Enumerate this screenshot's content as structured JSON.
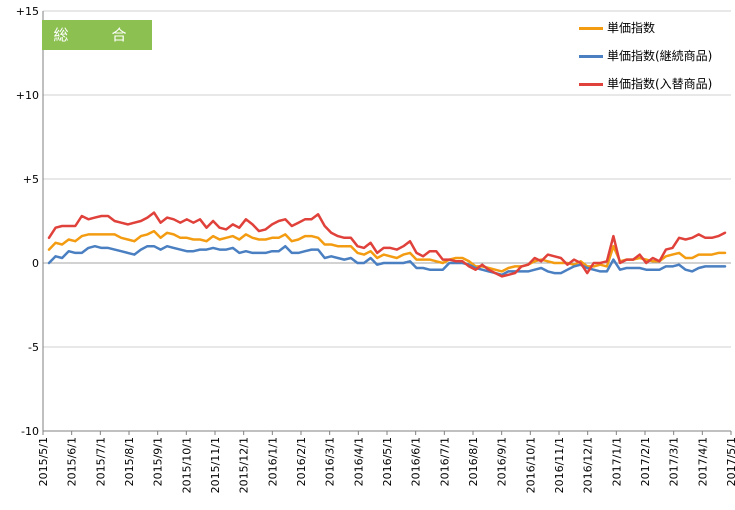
{
  "badge": {
    "label": "総　合",
    "color": "#8cc152"
  },
  "chart_data": {
    "type": "line",
    "title": "総　合",
    "ylim": [
      -10,
      15
    ],
    "yticks": [
      15,
      10,
      5,
      0,
      -5,
      -10
    ],
    "ytick_labels": [
      "+15",
      "+10",
      "+5",
      "0",
      "-5",
      "-10"
    ],
    "grid": true,
    "legend_position": "top-right",
    "x_labels": [
      "2015/5/1",
      "2015/6/1",
      "2015/7/1",
      "2015/8/1",
      "2015/9/1",
      "2015/10/1",
      "2015/11/1",
      "2015/12/1",
      "2016/1/1",
      "2016/2/1",
      "2016/3/1",
      "2016/4/1",
      "2016/5/1",
      "2016/6/1",
      "2016/7/1",
      "2016/8/1",
      "2016/9/1",
      "2016/10/1",
      "2016/11/1",
      "2016/12/1",
      "2017/1/1",
      "2017/2/1",
      "2017/3/1",
      "2017/4/1",
      "2017/5/1"
    ],
    "series": [
      {
        "name": "単価指数",
        "color": "#f39c12",
        "values": [
          0.8,
          1.2,
          1.1,
          1.4,
          1.3,
          1.6,
          1.7,
          1.7,
          1.7,
          1.7,
          1.7,
          1.5,
          1.4,
          1.3,
          1.6,
          1.7,
          1.9,
          1.5,
          1.8,
          1.7,
          1.5,
          1.5,
          1.4,
          1.4,
          1.3,
          1.6,
          1.4,
          1.5,
          1.6,
          1.4,
          1.7,
          1.5,
          1.4,
          1.4,
          1.5,
          1.5,
          1.7,
          1.3,
          1.4,
          1.6,
          1.6,
          1.5,
          1.1,
          1.1,
          1.0,
          1.0,
          1.0,
          0.6,
          0.5,
          0.7,
          0.3,
          0.5,
          0.4,
          0.3,
          0.5,
          0.6,
          0.2,
          0.2,
          0.2,
          0.1,
          0.0,
          0.2,
          0.3,
          0.3,
          0.1,
          -0.2,
          -0.2,
          -0.3,
          -0.4,
          -0.5,
          -0.3,
          -0.2,
          -0.2,
          -0.1,
          0.1,
          0.2,
          0.1,
          0.0,
          0.0,
          0.0,
          -0.1,
          0.1,
          -0.2,
          -0.2,
          -0.1,
          -0.2,
          1.0,
          0.1,
          0.2,
          0.2,
          0.3,
          0.2,
          0.1,
          0.1,
          0.4,
          0.5,
          0.6,
          0.3,
          0.3,
          0.5,
          0.5,
          0.5,
          0.6,
          0.6
        ]
      },
      {
        "name": "単価指数(継続商品)",
        "color": "#4a7fc1",
        "values": [
          0.0,
          0.4,
          0.3,
          0.7,
          0.6,
          0.6,
          0.9,
          1.0,
          0.9,
          0.9,
          0.8,
          0.7,
          0.6,
          0.5,
          0.8,
          1.0,
          1.0,
          0.8,
          1.0,
          0.9,
          0.8,
          0.7,
          0.7,
          0.8,
          0.8,
          0.9,
          0.8,
          0.8,
          0.9,
          0.6,
          0.7,
          0.6,
          0.6,
          0.6,
          0.7,
          0.7,
          1.0,
          0.6,
          0.6,
          0.7,
          0.8,
          0.8,
          0.3,
          0.4,
          0.3,
          0.2,
          0.3,
          0.0,
          0.0,
          0.3,
          -0.1,
          0.0,
          0.0,
          0.0,
          0.0,
          0.1,
          -0.3,
          -0.3,
          -0.4,
          -0.4,
          -0.4,
          0.0,
          0.0,
          0.0,
          -0.1,
          -0.3,
          -0.4,
          -0.5,
          -0.6,
          -0.7,
          -0.5,
          -0.5,
          -0.5,
          -0.5,
          -0.4,
          -0.3,
          -0.5,
          -0.6,
          -0.6,
          -0.4,
          -0.2,
          -0.1,
          -0.3,
          -0.4,
          -0.5,
          -0.5,
          0.2,
          -0.4,
          -0.3,
          -0.3,
          -0.3,
          -0.4,
          -0.4,
          -0.4,
          -0.2,
          -0.2,
          -0.1,
          -0.4,
          -0.5,
          -0.3,
          -0.2,
          -0.2,
          -0.2,
          -0.2
        ]
      },
      {
        "name": "単価指数(入替商品)",
        "color": "#e0413a",
        "values": [
          1.5,
          2.1,
          2.2,
          2.2,
          2.2,
          2.8,
          2.6,
          2.7,
          2.8,
          2.8,
          2.5,
          2.4,
          2.3,
          2.4,
          2.5,
          2.7,
          3.0,
          2.4,
          2.7,
          2.6,
          2.4,
          2.6,
          2.4,
          2.6,
          2.1,
          2.5,
          2.1,
          2.0,
          2.3,
          2.1,
          2.6,
          2.3,
          1.9,
          2.0,
          2.3,
          2.5,
          2.6,
          2.2,
          2.4,
          2.6,
          2.6,
          2.9,
          2.2,
          1.8,
          1.6,
          1.5,
          1.5,
          1.0,
          0.9,
          1.2,
          0.6,
          0.9,
          0.9,
          0.8,
          1.0,
          1.3,
          0.6,
          0.4,
          0.7,
          0.7,
          0.2,
          0.2,
          0.1,
          0.1,
          -0.2,
          -0.4,
          -0.1,
          -0.4,
          -0.6,
          -0.8,
          -0.7,
          -0.6,
          -0.2,
          -0.1,
          0.3,
          0.1,
          0.5,
          0.4,
          0.3,
          -0.1,
          0.2,
          0.0,
          -0.6,
          0.0,
          0.0,
          0.1,
          1.6,
          0.0,
          0.2,
          0.2,
          0.5,
          0.0,
          0.3,
          0.1,
          0.8,
          0.9,
          1.5,
          1.4,
          1.5,
          1.7,
          1.5,
          1.5,
          1.6,
          1.8
        ]
      }
    ]
  }
}
